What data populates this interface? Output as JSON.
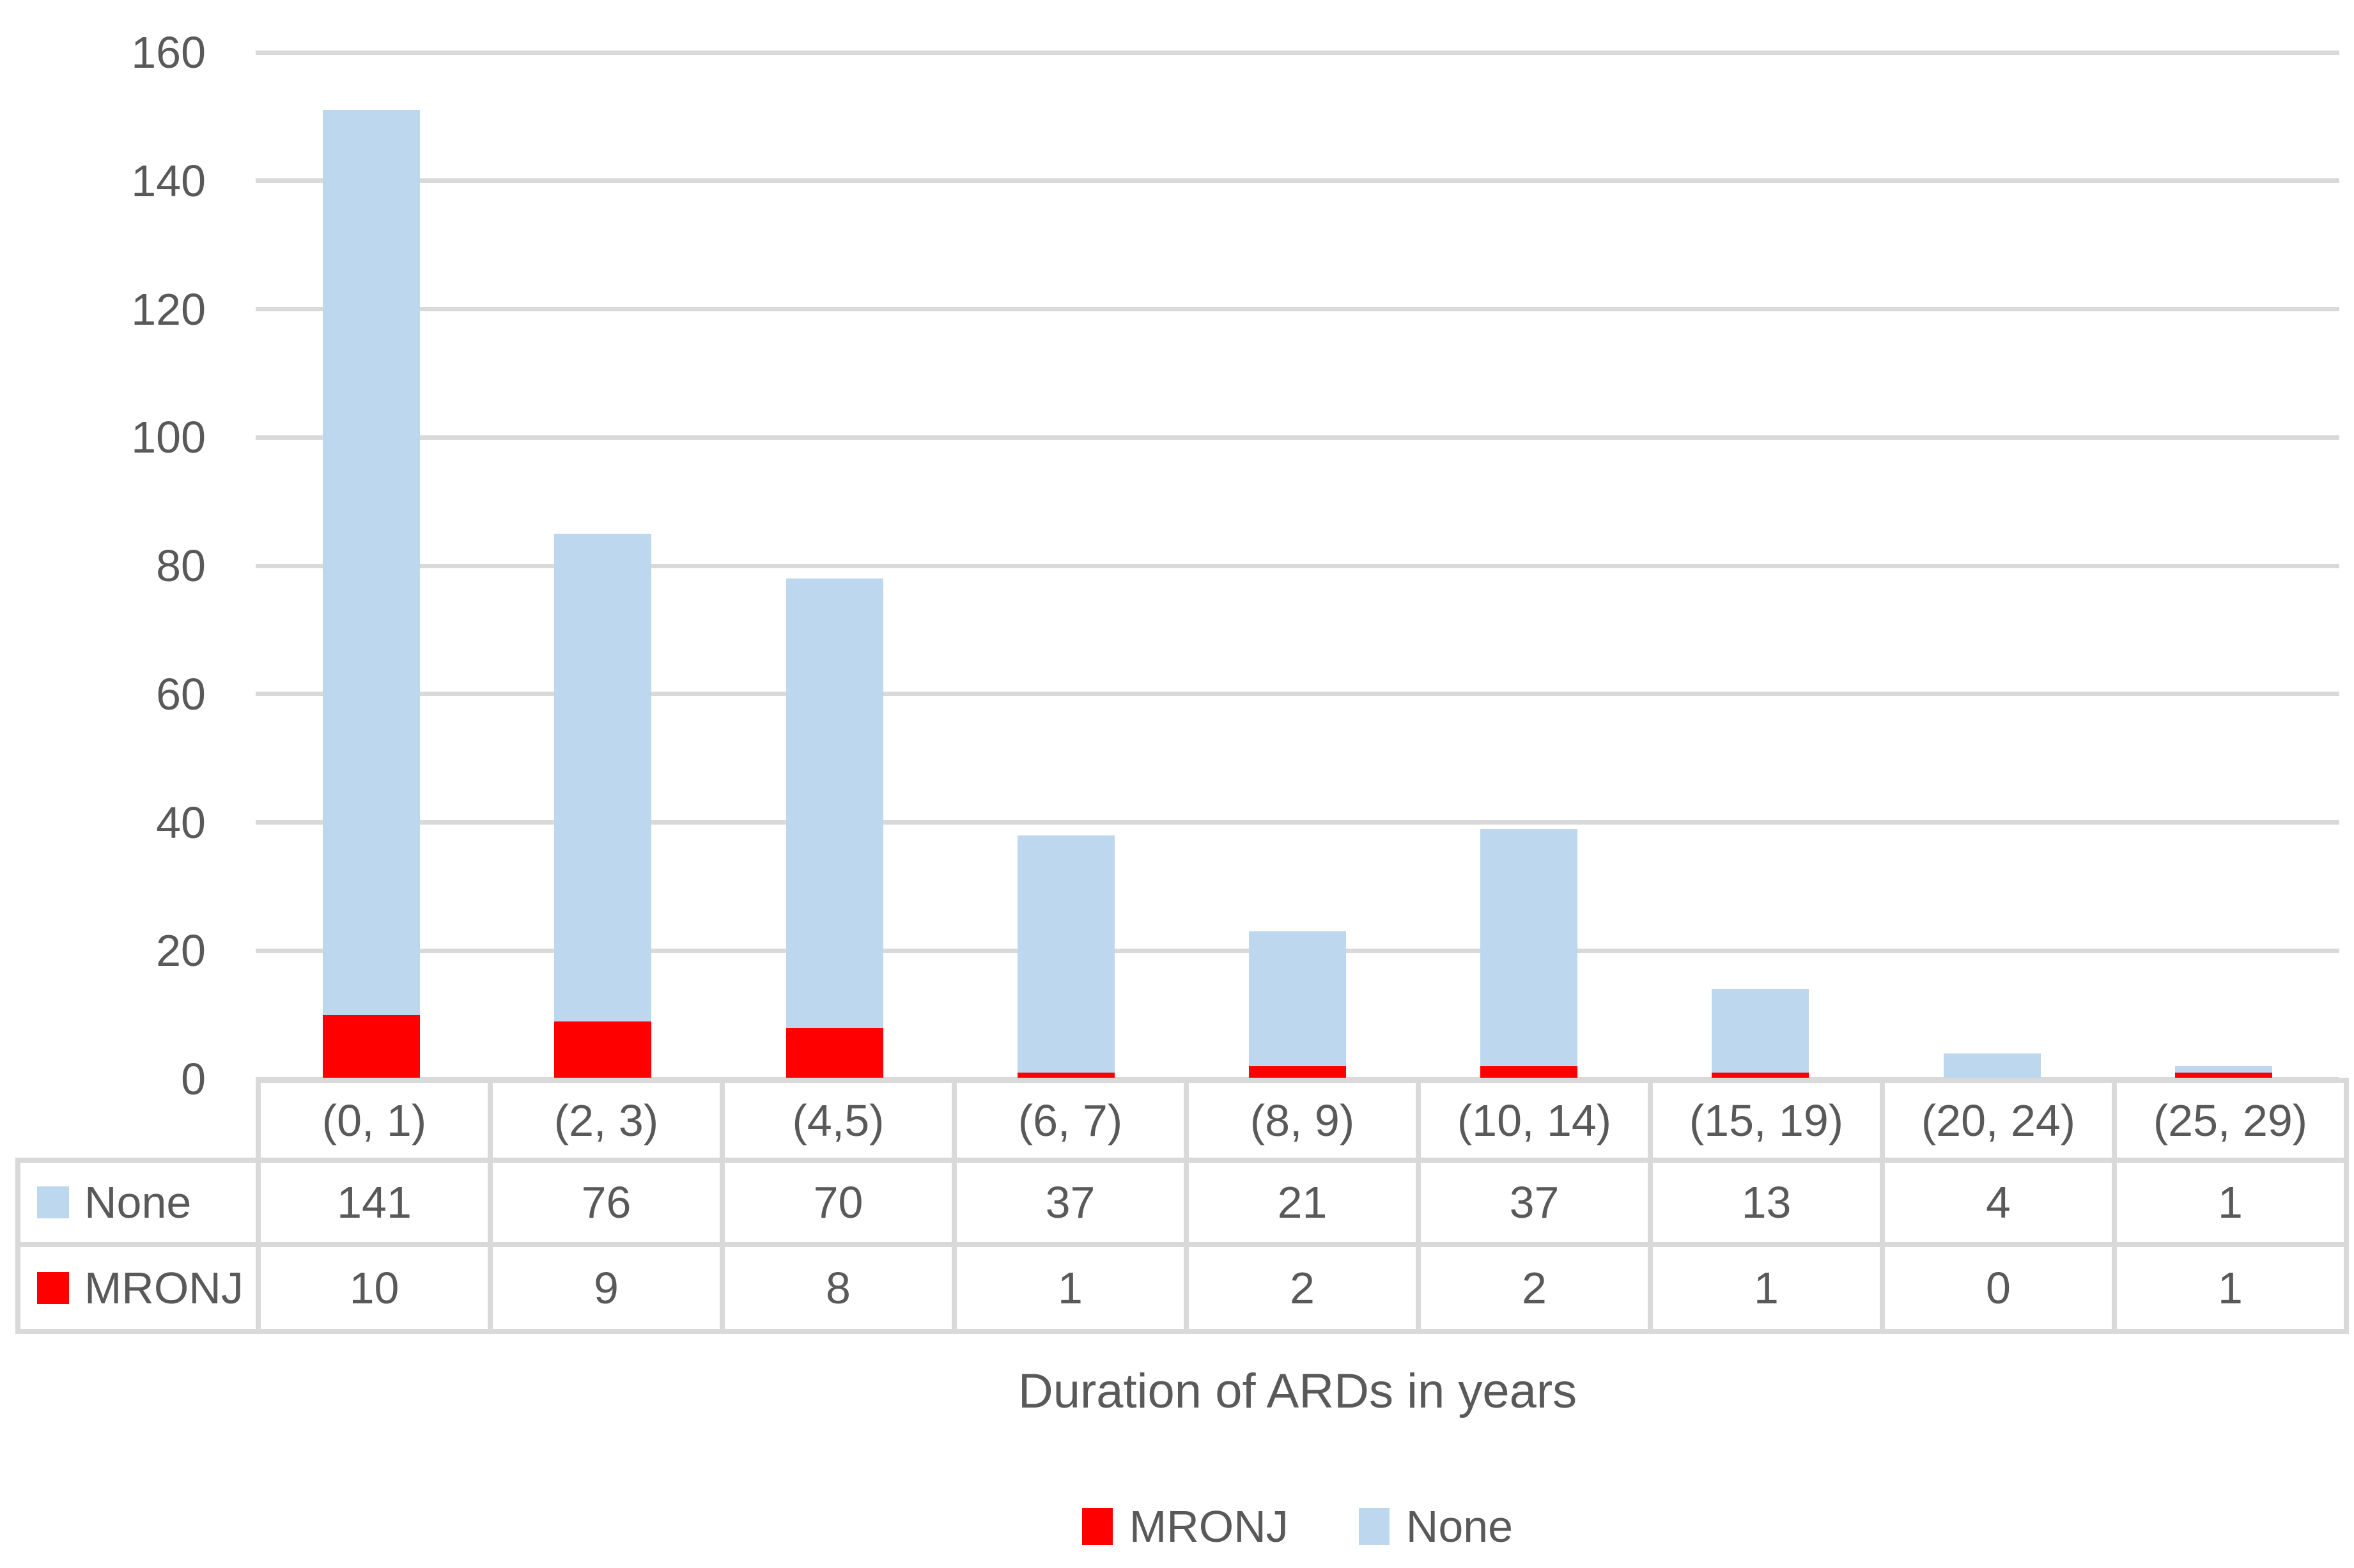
{
  "chart_data": {
    "type": "bar",
    "stacked": true,
    "title": "",
    "xlabel": "Duration of ARDs in years",
    "ylabel": "",
    "categories": [
      "(0, 1)",
      "(2, 3)",
      "(4,5)",
      "(6, 7)",
      "(8, 9)",
      "(10, 14)",
      "(15, 19)",
      "(20, 24)",
      "(25, 29)"
    ],
    "series": [
      {
        "name": "MRONJ",
        "color": "#ff0000",
        "values": [
          10,
          9,
          8,
          1,
          2,
          2,
          1,
          0,
          1
        ]
      },
      {
        "name": "None",
        "color": "#bdd7ee",
        "values": [
          141,
          76,
          70,
          37,
          21,
          37,
          13,
          4,
          1
        ]
      }
    ],
    "stack_order_bottom_to_top": [
      "MRONJ",
      "None"
    ],
    "table_row_order": [
      "None",
      "MRONJ"
    ],
    "legend_order": [
      "MRONJ",
      "None"
    ],
    "ylim": [
      0,
      160
    ],
    "yticks": [
      0,
      20,
      40,
      60,
      80,
      100,
      120,
      140,
      160
    ],
    "grid": true,
    "legend_position": "bottom",
    "data_table_shown": true
  },
  "styles": {
    "bar_none_color": "#bdd7ee",
    "bar_mronj_color": "#ff0000",
    "gridline_color": "#d9d9d9",
    "table_border_color": "#d9d9d9",
    "text_color": "#595959",
    "background_color": "#ffffff"
  }
}
